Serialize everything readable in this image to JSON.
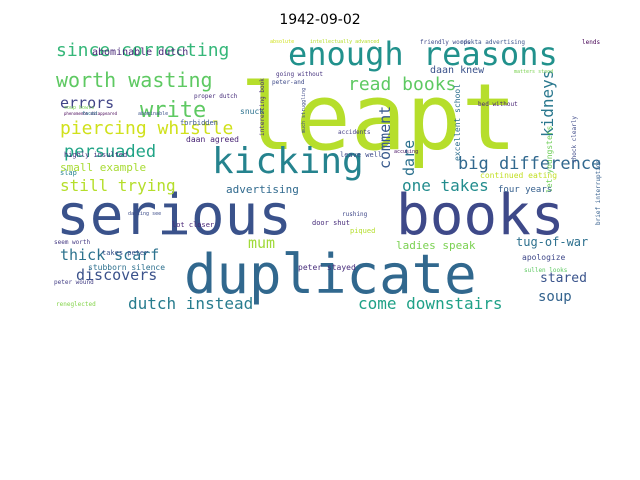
{
  "title": "1942-09-02",
  "words": [
    {
      "text": "leapt",
      "color": "#b6de2b"
    },
    {
      "text": "serious",
      "color": "#3a528b"
    },
    {
      "text": "books",
      "color": "#3e4989"
    },
    {
      "text": "duplicate",
      "color": "#31688e"
    },
    {
      "text": "enough reasons",
      "color": "#21918c"
    },
    {
      "text": "kicking",
      "color": "#25838e"
    },
    {
      "text": "since correcting",
      "color": "#35b779"
    },
    {
      "text": "worth wasting",
      "color": "#5ec962"
    },
    {
      "text": "read books",
      "color": "#5ec962"
    },
    {
      "text": "write",
      "color": "#5ec962"
    },
    {
      "text": "piercing whistle",
      "color": "#d0e11c"
    },
    {
      "text": "persuaded",
      "color": "#20a486"
    },
    {
      "text": "still trying",
      "color": "#b5de2b"
    },
    {
      "text": "big difference",
      "color": "#31688e"
    },
    {
      "text": "one takes",
      "color": "#228c8d"
    },
    {
      "text": "kidneys",
      "color": "#2a788e"
    },
    {
      "text": "comment",
      "color": "#38598c"
    },
    {
      "text": "dare",
      "color": "#2c718e"
    },
    {
      "text": "errors",
      "color": "#414487"
    },
    {
      "text": "mum",
      "color": "#a0da39"
    },
    {
      "text": "thick scarf",
      "color": "#2c728e"
    },
    {
      "text": "discovers",
      "color": "#3b528b"
    },
    {
      "text": "dutch instead",
      "color": "#287c8e"
    },
    {
      "text": "come downstairs",
      "color": "#1fa187"
    },
    {
      "text": "soup",
      "color": "#33638d"
    },
    {
      "text": "stared",
      "color": "#3a548c"
    },
    {
      "text": "tug-of-war",
      "color": "#2d708e"
    },
    {
      "text": "ladies speak",
      "color": "#7ad151"
    },
    {
      "text": "advertising",
      "color": "#306a8e"
    },
    {
      "text": "abominable dutch",
      "color": "#482878"
    },
    {
      "text": "small example",
      "color": "#a8db34"
    },
    {
      "text": "daan knew",
      "color": "#3b528b"
    },
    {
      "text": "daan agreed",
      "color": "#482475"
    },
    {
      "text": "let youngsters",
      "color": "#6ece58"
    },
    {
      "text": "shock clearly",
      "color": "#3e4a89"
    },
    {
      "text": "continued eating",
      "color": "#c2df23"
    },
    {
      "text": "four years",
      "color": "#355f8d"
    },
    {
      "text": "apologize",
      "color": "#3f4889"
    },
    {
      "text": "sullen looks",
      "color": "#5ec962"
    },
    {
      "text": "stubborn silence",
      "color": "#2d708e"
    },
    {
      "text": "takes peter",
      "color": "#3b528b"
    },
    {
      "text": "peter stayed",
      "color": "#472d7b"
    },
    {
      "text": "seem worth",
      "color": "#443983"
    },
    {
      "text": "peter wound",
      "color": "#433e85"
    },
    {
      "text": "reneglected",
      "color": "#84d44b"
    },
    {
      "text": "lot closer",
      "color": "#482576"
    },
    {
      "text": "darling see",
      "color": "#3d4d8a"
    },
    {
      "text": "door shut",
      "color": "#472c7a"
    },
    {
      "text": "piqued",
      "color": "#b5de2b"
    },
    {
      "text": "slap",
      "color": "#26828e"
    },
    {
      "text": "highly insulted",
      "color": "#46327e"
    },
    {
      "text": "leave well",
      "color": "#3e4c8a"
    },
    {
      "text": "rushing",
      "color": "#3f4788"
    },
    {
      "text": "accidents",
      "color": "#433d84"
    },
    {
      "text": "excellent school",
      "color": "#2e6f8e"
    },
    {
      "text": "accusing",
      "color": "#471164"
    },
    {
      "text": "forbidden",
      "color": "#3a548c"
    },
    {
      "text": "proper dutch",
      "color": "#472d7b"
    },
    {
      "text": "soup bowls",
      "color": "#7ad151"
    },
    {
      "text": "snuck",
      "color": "#2c728e"
    },
    {
      "text": "going without",
      "color": "#46337f"
    },
    {
      "text": "peter-and",
      "color": "#3e4a89"
    },
    {
      "text": "bed without",
      "color": "#482475"
    },
    {
      "text": "opekta advertising",
      "color": "#3b528b"
    },
    {
      "text": "lends",
      "color": "#440154"
    },
    {
      "text": "friendly words",
      "color": "#3e4989"
    },
    {
      "text": "intellectually advanced",
      "color": "#b5de2b"
    },
    {
      "text": "absolute",
      "color": "#d0e11c"
    },
    {
      "text": "phenomenon disappeared",
      "color": "#440154"
    },
    {
      "text": "abominable",
      "color": "#3b528b"
    },
    {
      "text": "faced",
      "color": "#2c728e"
    },
    {
      "text": "interesting book",
      "color": "#472d7b"
    },
    {
      "text": "much struggling",
      "color": "#3e4a89"
    },
    {
      "text": "matters stood",
      "color": "#7ad151"
    },
    {
      "text": "brief interruption",
      "color": "#355f8d"
    }
  ]
}
